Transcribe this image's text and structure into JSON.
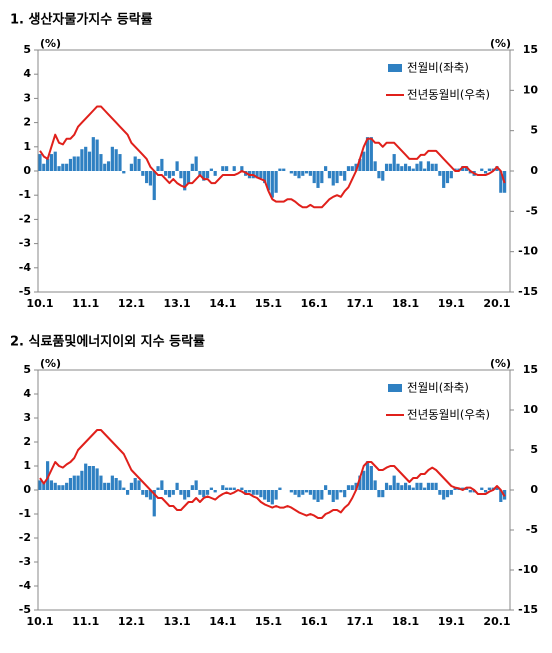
{
  "chart_data": [
    {
      "type": "combo",
      "title": "1. 생산자물가지수 등락률",
      "ylabel": "(%)",
      "y2label": "(%)",
      "legend": "upper right",
      "ylim": [
        -5,
        5
      ],
      "yticks": [
        -5,
        -4,
        -3,
        -2,
        -1,
        0,
        1,
        2,
        3,
        4,
        5
      ],
      "y2lim": [
        -15,
        15
      ],
      "y2ticks": [
        -15,
        -10,
        -5,
        0,
        5,
        10,
        15
      ],
      "categories": [
        "10.1",
        null,
        null,
        null,
        null,
        null,
        null,
        null,
        null,
        null,
        null,
        null,
        "11.1",
        null,
        null,
        null,
        null,
        null,
        null,
        null,
        null,
        null,
        null,
        null,
        "12.1",
        null,
        null,
        null,
        null,
        null,
        null,
        null,
        null,
        null,
        null,
        null,
        "13.1",
        null,
        null,
        null,
        null,
        null,
        null,
        null,
        null,
        null,
        null,
        null,
        "14.1",
        null,
        null,
        null,
        null,
        null,
        null,
        null,
        null,
        null,
        null,
        null,
        "15.1",
        null,
        null,
        null,
        null,
        null,
        null,
        null,
        null,
        null,
        null,
        null,
        "16.1",
        null,
        null,
        null,
        null,
        null,
        null,
        null,
        null,
        null,
        null,
        null,
        "17.1",
        null,
        null,
        null,
        null,
        null,
        null,
        null,
        null,
        null,
        null,
        null,
        "18.1",
        null,
        null,
        null,
        null,
        null,
        null,
        null,
        null,
        null,
        null,
        null,
        "19.1",
        null,
        null,
        null,
        null,
        null,
        null,
        null,
        null,
        null,
        null,
        null,
        "20.1",
        null,
        null
      ],
      "series": [
        {
          "name": "전월비(좌축)",
          "type": "bar",
          "color": "#2f80c2",
          "values": [
            0.7,
            0.3,
            0.5,
            0.7,
            0.8,
            0.2,
            0.3,
            0.3,
            0.5,
            0.6,
            0.6,
            0.9,
            1.0,
            0.8,
            1.4,
            1.3,
            0.7,
            0.3,
            0.4,
            1.0,
            0.9,
            0.7,
            -0.1,
            0.0,
            0.3,
            0.6,
            0.5,
            -0.2,
            -0.5,
            -0.6,
            -1.2,
            0.2,
            0.5,
            -0.2,
            -0.3,
            -0.2,
            0.4,
            -0.3,
            -0.8,
            -0.5,
            0.3,
            0.6,
            -0.2,
            -0.4,
            -0.3,
            0.1,
            -0.2,
            0.0,
            0.2,
            0.2,
            0.0,
            0.2,
            0.0,
            0.2,
            -0.2,
            -0.3,
            -0.3,
            -0.3,
            -0.3,
            -0.5,
            -0.8,
            -1.1,
            -0.9,
            0.1,
            0.1,
            0.0,
            -0.1,
            -0.2,
            -0.3,
            -0.2,
            -0.1,
            -0.2,
            -0.5,
            -0.7,
            -0.5,
            0.2,
            -0.3,
            -0.6,
            -0.5,
            -0.2,
            -0.4,
            0.2,
            0.2,
            0.3,
            0.5,
            0.8,
            1.4,
            1.4,
            0.4,
            -0.3,
            -0.4,
            0.3,
            0.3,
            0.7,
            0.3,
            0.2,
            0.3,
            0.2,
            0.1,
            0.3,
            0.4,
            0.1,
            0.4,
            0.3,
            0.3,
            -0.2,
            -0.7,
            -0.5,
            -0.3,
            0.1,
            0.1,
            0.2,
            0.2,
            -0.1,
            -0.2,
            0.0,
            0.1,
            -0.1,
            0.1,
            0.1,
            0.2,
            -0.9,
            -0.9
          ]
        },
        {
          "name": "전년동월비(우축)",
          "type": "line",
          "axis": "y2",
          "color": "#e0201b",
          "values": [
            2.5,
            1.8,
            1.5,
            3.0,
            4.5,
            3.5,
            3.3,
            4.0,
            4.0,
            4.5,
            5.5,
            6.0,
            6.5,
            7.0,
            7.5,
            8.0,
            8.0,
            7.5,
            7.0,
            6.5,
            6.0,
            5.5,
            5.0,
            4.5,
            3.5,
            3.0,
            2.5,
            2.0,
            1.5,
            0.5,
            0.0,
            -0.5,
            -0.5,
            -1.0,
            -1.5,
            -1.0,
            -1.5,
            -1.8,
            -2.0,
            -1.5,
            -1.5,
            -1.0,
            -0.5,
            -1.0,
            -1.0,
            -1.5,
            -1.5,
            -1.0,
            -0.5,
            -0.5,
            -0.5,
            -0.5,
            -0.3,
            0.0,
            -0.2,
            -0.5,
            -0.5,
            -0.8,
            -1.0,
            -1.2,
            -2.5,
            -3.5,
            -3.8,
            -3.8,
            -3.8,
            -3.5,
            -3.5,
            -3.8,
            -4.2,
            -4.5,
            -4.5,
            -4.2,
            -4.5,
            -4.5,
            -4.5,
            -4.0,
            -3.5,
            -3.2,
            -3.0,
            -3.2,
            -2.5,
            -2.0,
            -1.0,
            0.0,
            1.5,
            3.0,
            4.0,
            4.0,
            3.5,
            3.5,
            3.0,
            3.5,
            3.5,
            3.5,
            3.0,
            2.5,
            2.0,
            1.5,
            1.5,
            1.5,
            2.0,
            2.0,
            2.5,
            2.5,
            2.5,
            2.0,
            1.5,
            1.0,
            0.5,
            0.0,
            0.0,
            0.5,
            0.5,
            0.0,
            -0.3,
            -0.5,
            -0.5,
            -0.5,
            -0.3,
            0.0,
            0.5,
            0.0,
            -1.5
          ]
        }
      ]
    },
    {
      "type": "combo",
      "title": "2. 식료품및에너지이외 지수 등락률",
      "ylabel": "(%)",
      "y2label": "(%)",
      "legend": "upper right",
      "ylim": [
        -5,
        5
      ],
      "yticks": [
        -5,
        -4,
        -3,
        -2,
        -1,
        0,
        1,
        2,
        3,
        4,
        5
      ],
      "y2lim": [
        -15,
        15
      ],
      "y2ticks": [
        -15,
        -10,
        -5,
        0,
        5,
        10,
        15
      ],
      "categories": [
        "10.1",
        null,
        null,
        null,
        null,
        null,
        null,
        null,
        null,
        null,
        null,
        null,
        "11.1",
        null,
        null,
        null,
        null,
        null,
        null,
        null,
        null,
        null,
        null,
        null,
        "12.1",
        null,
        null,
        null,
        null,
        null,
        null,
        null,
        null,
        null,
        null,
        null,
        "13.1",
        null,
        null,
        null,
        null,
        null,
        null,
        null,
        null,
        null,
        null,
        null,
        "14.1",
        null,
        null,
        null,
        null,
        null,
        null,
        null,
        null,
        null,
        null,
        null,
        "15.1",
        null,
        null,
        null,
        null,
        null,
        null,
        null,
        null,
        null,
        null,
        null,
        "16.1",
        null,
        null,
        null,
        null,
        null,
        null,
        null,
        null,
        null,
        null,
        null,
        "17.1",
        null,
        null,
        null,
        null,
        null,
        null,
        null,
        null,
        null,
        null,
        null,
        "18.1",
        null,
        null,
        null,
        null,
        null,
        null,
        null,
        null,
        null,
        null,
        null,
        "19.1",
        null,
        null,
        null,
        null,
        null,
        null,
        null,
        null,
        null,
        null,
        null,
        "20.1",
        null,
        null
      ],
      "series": [
        {
          "name": "전월비(좌축)",
          "type": "bar",
          "color": "#2f80c2",
          "values": [
            0.4,
            0.3,
            1.2,
            0.4,
            0.3,
            0.2,
            0.2,
            0.3,
            0.5,
            0.6,
            0.6,
            0.8,
            1.1,
            1.0,
            1.0,
            0.9,
            0.6,
            0.3,
            0.3,
            0.6,
            0.5,
            0.4,
            0.1,
            -0.2,
            0.3,
            0.5,
            0.4,
            -0.2,
            -0.3,
            -0.4,
            -1.1,
            0.1,
            0.4,
            -0.2,
            -0.3,
            -0.2,
            0.3,
            -0.2,
            -0.4,
            -0.3,
            0.2,
            0.4,
            -0.2,
            -0.3,
            -0.2,
            0.1,
            -0.1,
            0.0,
            0.2,
            0.1,
            0.1,
            0.1,
            0.0,
            0.1,
            -0.2,
            -0.1,
            -0.2,
            -0.2,
            -0.3,
            -0.4,
            -0.5,
            -0.6,
            -0.4,
            0.1,
            0.0,
            0.0,
            -0.1,
            -0.2,
            -0.3,
            -0.2,
            -0.1,
            -0.2,
            -0.4,
            -0.5,
            -0.4,
            0.2,
            -0.2,
            -0.5,
            -0.4,
            -0.1,
            -0.3,
            0.2,
            0.2,
            0.3,
            0.6,
            0.8,
            1.2,
            1.0,
            0.4,
            -0.3,
            -0.3,
            0.3,
            0.2,
            0.6,
            0.3,
            0.2,
            0.3,
            0.2,
            0.1,
            0.3,
            0.3,
            0.1,
            0.3,
            0.3,
            0.3,
            -0.2,
            -0.4,
            -0.3,
            -0.2,
            0.1,
            0.1,
            0.1,
            0.1,
            -0.1,
            -0.1,
            0.0,
            0.1,
            -0.1,
            0.1,
            0.1,
            0.1,
            -0.5,
            -0.4
          ]
        },
        {
          "name": "전년동월비(우축)",
          "type": "line",
          "axis": "y2",
          "color": "#e0201b",
          "values": [
            1.5,
            0.8,
            1.5,
            2.5,
            3.5,
            3.0,
            2.8,
            3.2,
            3.5,
            4.0,
            5.0,
            5.5,
            6.0,
            6.5,
            7.0,
            7.5,
            7.5,
            7.0,
            6.5,
            6.0,
            5.5,
            5.0,
            4.5,
            3.5,
            2.5,
            2.0,
            1.5,
            1.0,
            0.5,
            0.0,
            -0.5,
            -1.0,
            -1.0,
            -1.5,
            -2.0,
            -2.0,
            -2.5,
            -2.5,
            -2.0,
            -1.5,
            -1.5,
            -1.0,
            -1.5,
            -1.0,
            -0.8,
            -1.0,
            -1.2,
            -0.8,
            -0.5,
            -0.3,
            -0.5,
            -0.3,
            0.0,
            -0.2,
            -0.5,
            -0.5,
            -0.8,
            -1.0,
            -1.5,
            -1.8,
            -2.0,
            -2.2,
            -2.0,
            -2.2,
            -2.2,
            -2.0,
            -2.2,
            -2.5,
            -2.8,
            -3.0,
            -3.2,
            -3.0,
            -3.2,
            -3.5,
            -3.5,
            -3.0,
            -2.8,
            -2.5,
            -2.5,
            -2.8,
            -2.2,
            -1.8,
            -1.0,
            0.0,
            1.5,
            3.0,
            3.5,
            3.5,
            3.0,
            2.5,
            2.5,
            2.8,
            3.0,
            3.0,
            2.5,
            2.0,
            1.5,
            1.0,
            1.5,
            1.5,
            2.0,
            2.0,
            2.5,
            2.8,
            2.5,
            2.0,
            1.5,
            1.0,
            0.5,
            0.3,
            0.2,
            0.0,
            0.3,
            0.3,
            0.0,
            -0.5,
            -0.5,
            -0.5,
            -0.2,
            0.0,
            0.5,
            0.0,
            -0.8
          ]
        }
      ]
    }
  ]
}
